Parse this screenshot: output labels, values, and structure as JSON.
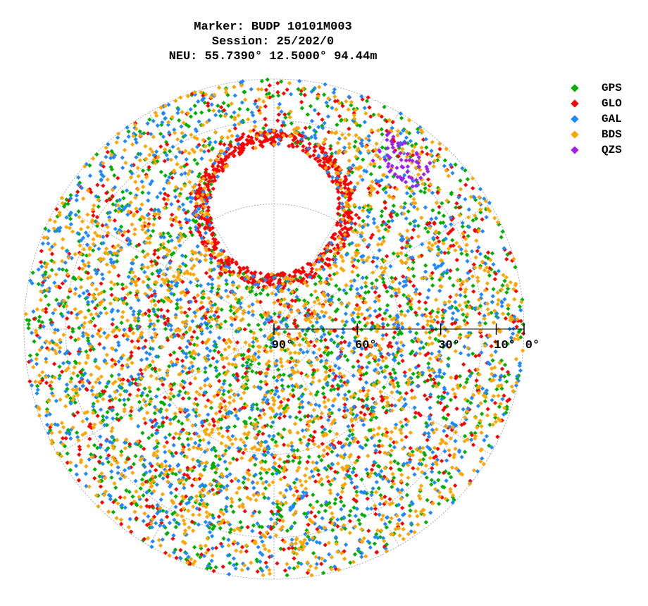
{
  "chart_data": {
    "type": "scatter",
    "subtype": "polar-skyplot",
    "title_lines": [
      "Marker: BUDP 10101M003",
      "Session: 25/202/0",
      "NEU: 55.7390° 12.5000° 94.44m"
    ],
    "elevation_range": [
      0,
      90
    ],
    "elevation_ticks": [
      {
        "value": 90,
        "label": "90°"
      },
      {
        "value": 60,
        "label": "60°"
      },
      {
        "value": 30,
        "label": "30°"
      },
      {
        "value": 10,
        "label": "10°"
      },
      {
        "value": 0,
        "label": "0°"
      }
    ],
    "grid": true,
    "legend_position": "right",
    "north_gap": {
      "description": "no satellite coverage near zenith-north",
      "center_elevation": 47,
      "radius_deg": 23
    },
    "series": [
      {
        "name": "GPS",
        "color": "#00b000",
        "count": 1500
      },
      {
        "name": "GLO",
        "color": "#ff0000",
        "count": 1500
      },
      {
        "name": "GAL",
        "color": "#1e88ff",
        "count": 1500
      },
      {
        "name": "BDS",
        "color": "#ffa500",
        "count": 1900
      },
      {
        "name": "QZS",
        "color": "#a020f0",
        "count": 60,
        "azimuth_range": [
          30,
          45
        ],
        "elevation_range": [
          8,
          20
        ]
      }
    ]
  }
}
